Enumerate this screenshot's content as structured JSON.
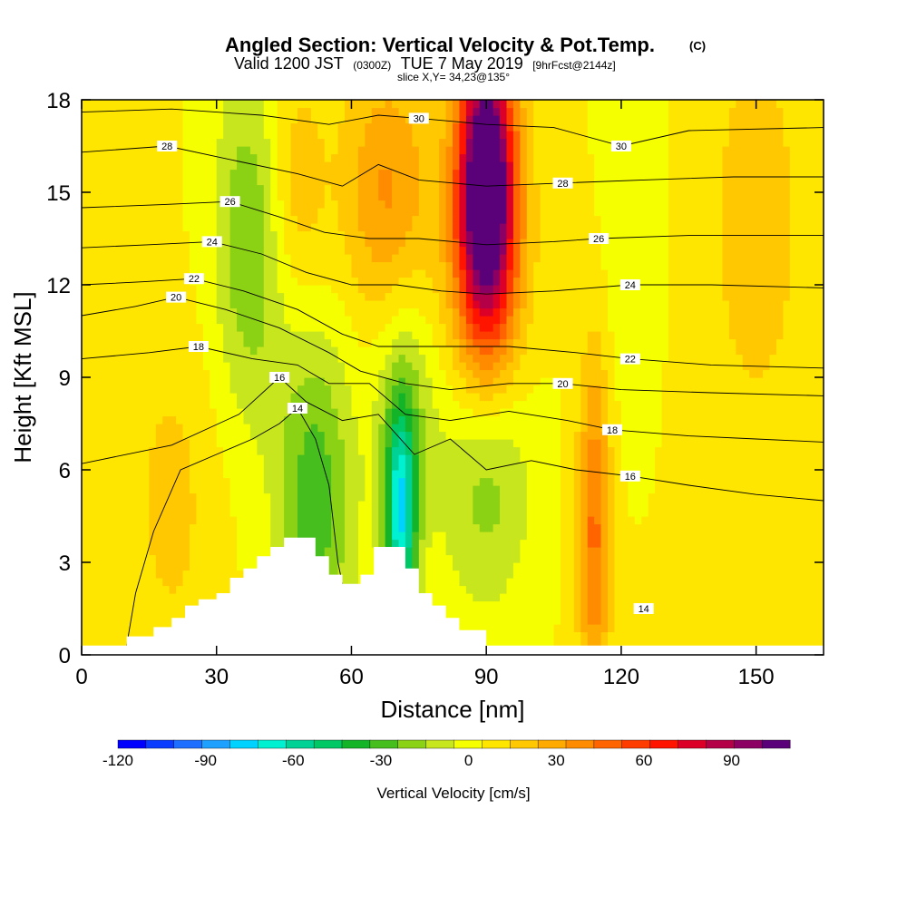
{
  "header": {
    "title": "Angled Section: Vertical Velocity & Pot.Temp.",
    "title_unit": "(C)",
    "valid_prefix": "Valid 1200 JST",
    "valid_zulu": "(0300Z)",
    "valid_date": "TUE 7 May 2019",
    "forecast": "[9hrFcst@2144z]",
    "slice": "slice X,Y= 34,23@135°"
  },
  "chart_data": {
    "type": "heatmap",
    "xlabel": "Distance [nm]",
    "ylabel": "Height [Kft MSL]",
    "xlim": [
      0,
      165
    ],
    "ylim": [
      0,
      18
    ],
    "x_ticks": [
      0,
      30,
      60,
      90,
      120,
      150
    ],
    "y_ticks": [
      0,
      3,
      6,
      9,
      12,
      15,
      18
    ],
    "colorbar": {
      "label": "Vertical Velocity [cm/s]",
      "range": [
        -120,
        110
      ],
      "ticks": [
        -120,
        -90,
        -60,
        -30,
        0,
        30,
        60,
        90
      ],
      "colors": [
        "#0000ff",
        "#0a3cff",
        "#1e6eff",
        "#1ea0ff",
        "#00d2ff",
        "#00f0d2",
        "#00d296",
        "#00c864",
        "#14b428",
        "#46be1e",
        "#8cd214",
        "#c8e61e",
        "#f5ff00",
        "#ffe600",
        "#ffc800",
        "#ffaa00",
        "#ff8c00",
        "#ff6400",
        "#ff3c00",
        "#ff1400",
        "#dc0028",
        "#b40046",
        "#8c0064",
        "#5a0078"
      ]
    },
    "velocity_features": [
      {
        "x": 90,
        "y": 15.5,
        "sx": 4,
        "sy": 3,
        "value": 100
      },
      {
        "x": 90,
        "y": 13,
        "sx": 6,
        "sy": 4,
        "value": 50
      },
      {
        "x": 68,
        "y": 15,
        "sx": 7,
        "sy": 3,
        "value": 30
      },
      {
        "x": 47,
        "y": 15,
        "sx": 5,
        "sy": 3,
        "value": 20
      },
      {
        "x": 114,
        "y": 4,
        "sx": 2.5,
        "sy": 4,
        "value": 40
      },
      {
        "x": 38,
        "y": 13.5,
        "sx": 6,
        "sy": 4,
        "value": -30
      },
      {
        "x": 52,
        "y": 5,
        "sx": 6,
        "sy": 4,
        "value": -35
      },
      {
        "x": 71,
        "y": 4.5,
        "sx": 2.5,
        "sy": 2.5,
        "value": -70
      },
      {
        "x": 72,
        "y": 8,
        "sx": 5,
        "sy": 3,
        "value": -20
      },
      {
        "x": 90,
        "y": 6,
        "sx": 7,
        "sy": 3,
        "value": -30
      },
      {
        "x": 122,
        "y": 14,
        "sx": 4,
        "sy": 4,
        "value": -10
      },
      {
        "x": 150,
        "y": 14,
        "sx": 8,
        "sy": 5,
        "value": 15
      },
      {
        "x": 20,
        "y": 5,
        "sx": 7,
        "sy": 4,
        "value": 12
      }
    ],
    "terrain": [
      [
        0,
        0.3
      ],
      [
        10,
        0.3
      ],
      [
        10,
        0.6
      ],
      [
        16,
        0.6
      ],
      [
        16,
        0.9
      ],
      [
        20,
        0.9
      ],
      [
        20,
        1.2
      ],
      [
        23,
        1.2
      ],
      [
        23,
        1.6
      ],
      [
        26,
        1.6
      ],
      [
        26,
        1.8
      ],
      [
        30,
        1.8
      ],
      [
        30,
        2.0
      ],
      [
        33,
        2.0
      ],
      [
        33,
        2.5
      ],
      [
        36,
        2.5
      ],
      [
        36,
        2.8
      ],
      [
        39,
        2.8
      ],
      [
        39,
        3.2
      ],
      [
        42,
        3.2
      ],
      [
        42,
        3.5
      ],
      [
        45,
        3.5
      ],
      [
        45,
        3.8
      ],
      [
        52,
        3.8
      ],
      [
        52,
        3.2
      ],
      [
        55,
        3.2
      ],
      [
        55,
        2.6
      ],
      [
        58,
        2.6
      ],
      [
        58,
        2.3
      ],
      [
        62,
        2.3
      ],
      [
        62,
        2.6
      ],
      [
        65,
        2.6
      ],
      [
        65,
        3.5
      ],
      [
        72,
        3.5
      ],
      [
        72,
        2.8
      ],
      [
        75,
        2.8
      ],
      [
        75,
        2.0
      ],
      [
        78,
        2.0
      ],
      [
        78,
        1.6
      ],
      [
        81,
        1.6
      ],
      [
        81,
        1.2
      ],
      [
        84,
        1.2
      ],
      [
        84,
        0.8
      ],
      [
        90,
        0.8
      ],
      [
        90,
        0.3
      ],
      [
        165,
        0.3
      ]
    ],
    "pot_temp_contours": [
      {
        "level": 14,
        "label_pos": [
          48,
          8.0
        ],
        "label_pos2": [
          125,
          1.5
        ],
        "pts": [
          [
            10,
            0.3
          ],
          [
            12,
            2
          ],
          [
            16,
            4
          ],
          [
            22,
            6
          ],
          [
            30,
            6.5
          ],
          [
            38,
            7
          ],
          [
            44,
            7.5
          ],
          [
            48,
            8
          ],
          [
            52,
            7
          ],
          [
            55,
            5.5
          ],
          [
            57,
            3
          ],
          [
            58,
            2.3
          ]
        ]
      },
      {
        "level": 16,
        "label_pos": [
          44,
          9.0
        ],
        "label_pos2": [
          122,
          5.8
        ],
        "pts": [
          [
            0,
            6.2
          ],
          [
            20,
            6.8
          ],
          [
            35,
            7.8
          ],
          [
            44,
            9
          ],
          [
            50,
            8.2
          ],
          [
            58,
            7.6
          ],
          [
            66,
            7.8
          ],
          [
            74,
            6.5
          ],
          [
            82,
            7
          ],
          [
            90,
            6
          ],
          [
            100,
            6.3
          ],
          [
            110,
            6.0
          ],
          [
            122,
            5.8
          ],
          [
            135,
            5.5
          ],
          [
            150,
            5.2
          ],
          [
            165,
            5.0
          ]
        ]
      },
      {
        "level": 18,
        "label_pos": [
          26,
          10.0
        ],
        "label_pos2": [
          118,
          7.3
        ],
        "pts": [
          [
            0,
            9.6
          ],
          [
            15,
            9.8
          ],
          [
            26,
            10
          ],
          [
            38,
            9.6
          ],
          [
            48,
            9.4
          ],
          [
            55,
            8.8
          ],
          [
            64,
            8.8
          ],
          [
            72,
            7.8
          ],
          [
            82,
            7.6
          ],
          [
            95,
            7.9
          ],
          [
            108,
            7.6
          ],
          [
            118,
            7.3
          ],
          [
            135,
            7.1
          ],
          [
            150,
            7.0
          ],
          [
            165,
            6.9
          ]
        ]
      },
      {
        "level": 20,
        "label_pos": [
          21,
          11.6
        ],
        "label_pos2": [
          107,
          8.8
        ],
        "pts": [
          [
            0,
            11
          ],
          [
            12,
            11.3
          ],
          [
            21,
            11.6
          ],
          [
            32,
            11.2
          ],
          [
            44,
            10.6
          ],
          [
            55,
            9.8
          ],
          [
            62,
            9.2
          ],
          [
            72,
            8.8
          ],
          [
            82,
            8.6
          ],
          [
            95,
            8.8
          ],
          [
            107,
            8.8
          ],
          [
            120,
            8.6
          ],
          [
            140,
            8.5
          ],
          [
            165,
            8.4
          ]
        ]
      },
      {
        "level": 22,
        "label_pos": [
          25,
          12.2
        ],
        "label_pos2": [
          122,
          9.6
        ],
        "pts": [
          [
            0,
            12
          ],
          [
            14,
            12.1
          ],
          [
            25,
            12.2
          ],
          [
            36,
            11.8
          ],
          [
            48,
            11.2
          ],
          [
            58,
            10.4
          ],
          [
            66,
            10.0
          ],
          [
            72,
            10.0
          ],
          [
            82,
            10.0
          ],
          [
            95,
            10.0
          ],
          [
            110,
            9.8
          ],
          [
            122,
            9.6
          ],
          [
            140,
            9.4
          ],
          [
            165,
            9.3
          ]
        ]
      },
      {
        "level": 24,
        "label_pos": [
          29,
          13.4
        ],
        "label_pos2": [
          122,
          12.0
        ],
        "pts": [
          [
            0,
            13.2
          ],
          [
            15,
            13.3
          ],
          [
            29,
            13.4
          ],
          [
            40,
            13.0
          ],
          [
            50,
            12.4
          ],
          [
            60,
            12.0
          ],
          [
            70,
            12.0
          ],
          [
            80,
            11.8
          ],
          [
            90,
            11.7
          ],
          [
            105,
            11.8
          ],
          [
            122,
            12.0
          ],
          [
            140,
            12.0
          ],
          [
            165,
            11.9
          ]
        ]
      },
      {
        "level": 26,
        "label_pos": [
          33,
          14.7
        ],
        "label_pos2": [
          115,
          13.5
        ],
        "pts": [
          [
            0,
            14.5
          ],
          [
            18,
            14.6
          ],
          [
            33,
            14.7
          ],
          [
            44,
            14.2
          ],
          [
            54,
            13.7
          ],
          [
            64,
            13.5
          ],
          [
            75,
            13.5
          ],
          [
            90,
            13.3
          ],
          [
            105,
            13.4
          ],
          [
            115,
            13.5
          ],
          [
            135,
            13.6
          ],
          [
            165,
            13.6
          ]
        ]
      },
      {
        "level": 28,
        "label_pos": [
          19,
          16.5
        ],
        "label_pos2": [
          107,
          15.3
        ],
        "pts": [
          [
            0,
            16.3
          ],
          [
            19,
            16.5
          ],
          [
            35,
            16.0
          ],
          [
            48,
            15.6
          ],
          [
            58,
            15.2
          ],
          [
            66,
            15.9
          ],
          [
            75,
            15.4
          ],
          [
            90,
            15.2
          ],
          [
            107,
            15.3
          ],
          [
            125,
            15.4
          ],
          [
            145,
            15.5
          ],
          [
            165,
            15.5
          ]
        ]
      },
      {
        "level": 30,
        "label_pos": [
          75,
          17.4
        ],
        "label_pos2": [
          120,
          16.5
        ],
        "pts": [
          [
            0,
            17.6
          ],
          [
            20,
            17.7
          ],
          [
            40,
            17.5
          ],
          [
            55,
            17.2
          ],
          [
            66,
            17.5
          ],
          [
            75,
            17.4
          ],
          [
            90,
            17.2
          ],
          [
            105,
            17.1
          ],
          [
            120,
            16.5
          ],
          [
            135,
            17.0
          ],
          [
            165,
            17.1
          ]
        ]
      }
    ]
  }
}
